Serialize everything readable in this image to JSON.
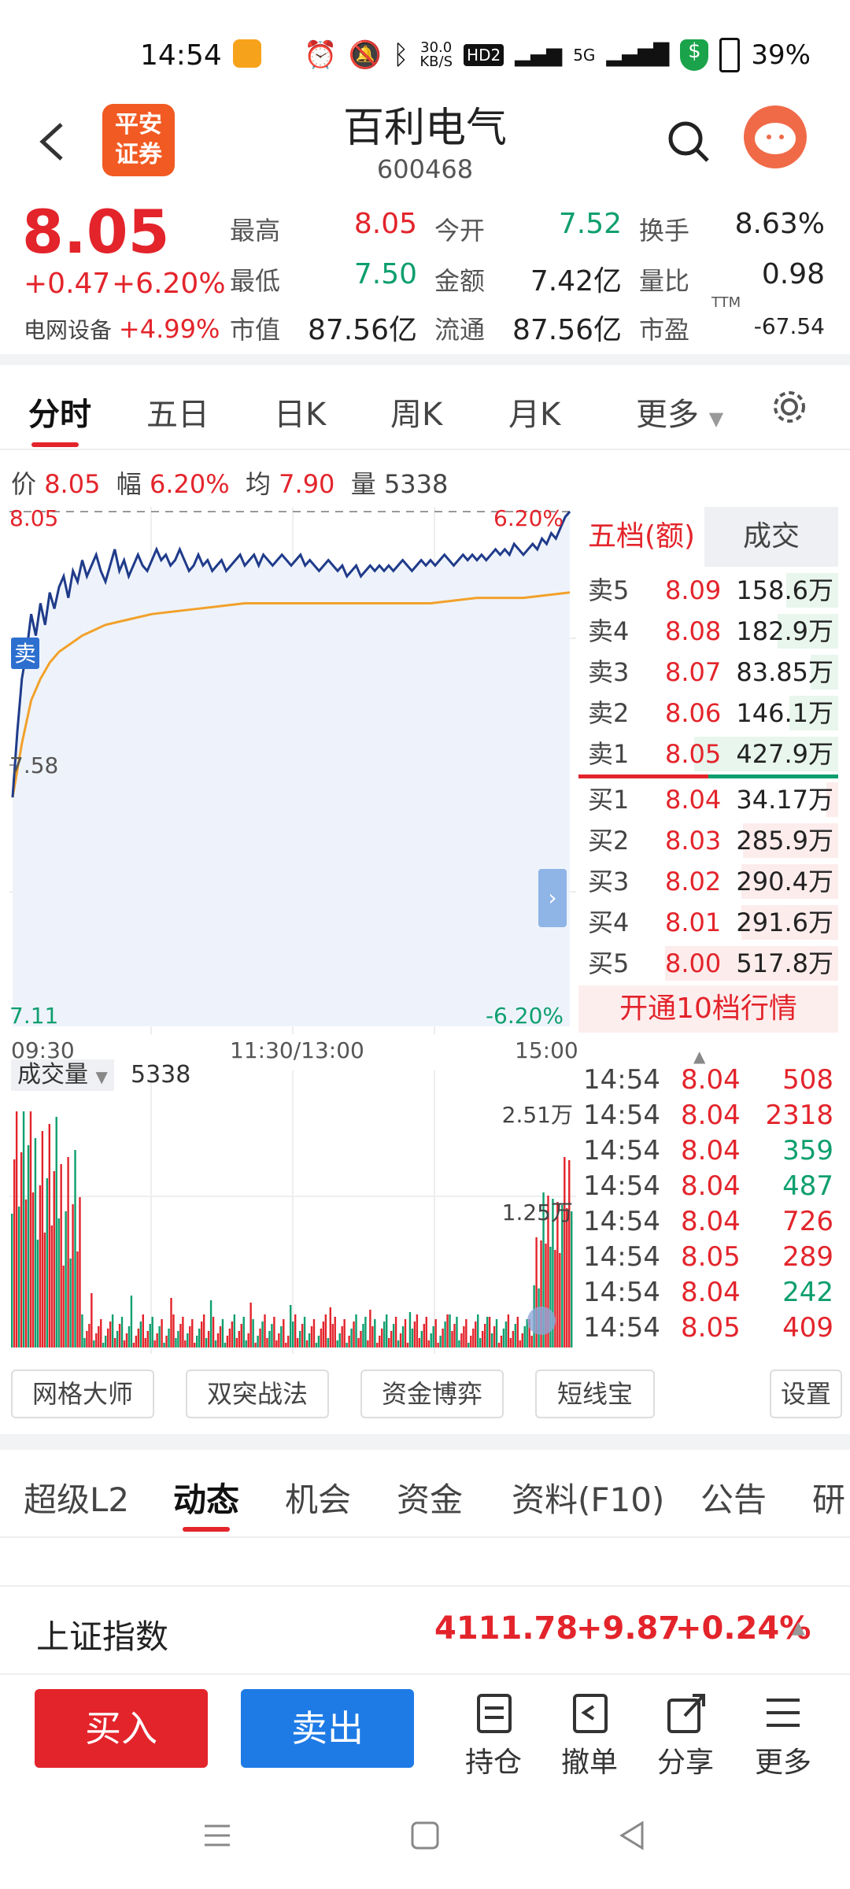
{
  "status_bar": {
    "time": "14:54",
    "net_speed_top": "30.0",
    "net_speed_unit": "KB/S",
    "hd": "HD2",
    "signal": "5G",
    "battery": "39%"
  },
  "header": {
    "stock_name": "百利电气",
    "stock_code": "600468",
    "logo_text_1": "平安",
    "logo_text_2": "证券"
  },
  "quote": {
    "price": "8.05",
    "change": "+0.47",
    "change_pct": "+6.20%",
    "sector_name": "电网设备",
    "sector_pct": "+4.99%",
    "fields": [
      {
        "label": "最高",
        "value": "8.05",
        "color": "#e3242b"
      },
      {
        "label": "今开",
        "value": "7.52",
        "color": "#0e9f6e"
      },
      {
        "label": "换手",
        "value": "8.63%",
        "color": "#222222"
      },
      {
        "label": "最低",
        "value": "7.50",
        "color": "#0e9f6e"
      },
      {
        "label": "金额",
        "value": "7.42亿",
        "color": "#222222"
      },
      {
        "label": "量比",
        "value": "0.98",
        "color": "#222222"
      },
      {
        "label": "市值",
        "value": "87.56亿",
        "color": "#222222"
      },
      {
        "label": "流通",
        "value": "87.56亿",
        "color": "#222222"
      },
      {
        "label": "市盈",
        "value": "-67.54",
        "color": "#222222",
        "sup": "TTM"
      }
    ]
  },
  "chart_tabs": [
    "分时",
    "五日",
    "日K",
    "周K",
    "月K",
    "更多"
  ],
  "chart_info": {
    "price_label": "价",
    "price": "8.05",
    "amp_label": "幅",
    "amp": "6.20%",
    "avg_label": "均",
    "avg": "7.90",
    "vol_label": "量",
    "vol": "5338"
  },
  "chart_data": {
    "type": "line",
    "title": "",
    "x_ticks": [
      "09:30",
      "11:30/13:00",
      "15:00"
    ],
    "y_left": {
      "max": "8.05",
      "mid": "7.58",
      "min": "7.11"
    },
    "y_right": {
      "max": "6.20%",
      "min": "-6.20%"
    },
    "ylim": [
      7.11,
      8.05
    ],
    "marker_label": "卖",
    "series": [
      {
        "name": "价",
        "color": "#1f3b8a",
        "x": [
          0,
          2,
          4,
          6,
          8,
          10,
          12,
          14,
          16,
          18,
          20,
          22,
          24,
          26,
          28,
          30,
          32,
          34,
          36,
          38,
          40,
          42,
          44,
          46,
          48,
          50,
          52,
          54,
          56,
          58,
          60,
          62,
          64,
          66,
          68,
          70,
          72,
          74,
          76,
          78,
          80,
          82,
          84,
          86,
          88,
          90,
          92,
          94,
          96,
          98,
          100,
          102,
          104,
          106,
          108,
          110,
          112,
          114,
          116,
          118,
          120,
          122,
          124,
          126,
          128,
          130,
          132,
          134,
          136,
          138,
          140,
          142,
          144,
          146,
          148,
          150,
          152,
          154,
          156,
          158,
          160,
          162,
          164,
          166,
          168,
          170,
          172,
          174,
          176,
          178,
          180,
          182,
          184,
          186,
          188,
          190,
          192,
          194,
          196,
          198,
          200,
          202,
          204,
          206,
          208,
          210,
          212,
          214,
          216,
          218,
          220,
          222,
          224,
          226,
          228,
          230,
          232,
          234,
          236,
          238,
          240
        ],
        "values": [
          7.52,
          7.64,
          7.74,
          7.79,
          7.86,
          7.82,
          7.88,
          7.84,
          7.9,
          7.87,
          7.91,
          7.93,
          7.89,
          7.94,
          7.92,
          7.96,
          7.93,
          7.95,
          7.97,
          7.94,
          7.92,
          7.95,
          7.98,
          7.94,
          7.96,
          7.93,
          7.95,
          7.97,
          7.95,
          7.94,
          7.96,
          7.98,
          7.96,
          7.97,
          7.95,
          7.96,
          7.98,
          7.96,
          7.94,
          7.95,
          7.97,
          7.95,
          7.96,
          7.94,
          7.95,
          7.96,
          7.94,
          7.95,
          7.96,
          7.97,
          7.95,
          7.96,
          7.97,
          7.95,
          7.97,
          7.96,
          7.95,
          7.96,
          7.97,
          7.96,
          7.95,
          7.96,
          7.97,
          7.95,
          7.96,
          7.95,
          7.94,
          7.95,
          7.96,
          7.95,
          7.94,
          7.95,
          7.93,
          7.94,
          7.95,
          7.93,
          7.94,
          7.95,
          7.94,
          7.95,
          7.94,
          7.95,
          7.94,
          7.95,
          7.96,
          7.95,
          7.94,
          7.95,
          7.96,
          7.95,
          7.96,
          7.95,
          7.96,
          7.97,
          7.96,
          7.95,
          7.96,
          7.97,
          7.96,
          7.97,
          7.96,
          7.97,
          7.96,
          7.97,
          7.98,
          7.97,
          7.98,
          7.97,
          7.99,
          7.98,
          7.97,
          7.98,
          7.99,
          7.98,
          8.0,
          7.99,
          8.01,
          8.0,
          8.02,
          8.04,
          8.05
        ]
      },
      {
        "name": "均",
        "color": "#f2a12b",
        "x": [
          0,
          4,
          8,
          12,
          16,
          20,
          30,
          40,
          50,
          60,
          80,
          100,
          120,
          140,
          160,
          180,
          200,
          220,
          240
        ],
        "values": [
          7.52,
          7.62,
          7.7,
          7.74,
          7.77,
          7.79,
          7.82,
          7.84,
          7.85,
          7.86,
          7.87,
          7.88,
          7.88,
          7.88,
          7.88,
          7.88,
          7.89,
          7.89,
          7.9
        ]
      }
    ]
  },
  "order_book": {
    "tab_active": "五档(额)",
    "tab_other": "成交",
    "asks": [
      {
        "label": "卖5",
        "price": "8.09",
        "vol": "158.6万",
        "level": 0.3
      },
      {
        "label": "卖4",
        "price": "8.08",
        "vol": "182.9万",
        "level": 0.35
      },
      {
        "label": "卖3",
        "price": "8.07",
        "vol": "83.85万",
        "level": 0.16
      },
      {
        "label": "卖2",
        "price": "8.06",
        "vol": "146.1万",
        "level": 0.28
      },
      {
        "label": "卖1",
        "price": "8.05",
        "vol": "427.9万",
        "level": 0.83
      }
    ],
    "bids": [
      {
        "label": "买1",
        "price": "8.04",
        "vol": "34.17万",
        "level": 0.07
      },
      {
        "label": "买2",
        "price": "8.03",
        "vol": "285.9万",
        "level": 0.55
      },
      {
        "label": "买3",
        "price": "8.02",
        "vol": "290.4万",
        "level": 0.56
      },
      {
        "label": "买4",
        "price": "8.01",
        "vol": "291.6万",
        "level": 0.56
      },
      {
        "label": "买5",
        "price": "8.00",
        "vol": "517.8万",
        "level": 1.0
      }
    ],
    "open_more": "开通10档行情"
  },
  "volume": {
    "label": "成交量",
    "value": "5338",
    "ytick_high": "2.51万",
    "ytick_mid": "1.25万"
  },
  "ticks": [
    {
      "time": "14:54",
      "price": "8.04",
      "vol": "508",
      "color": "#e3242b"
    },
    {
      "time": "14:54",
      "price": "8.04",
      "vol": "2318",
      "color": "#e3242b"
    },
    {
      "time": "14:54",
      "price": "8.04",
      "vol": "359",
      "color": "#0e9f6e"
    },
    {
      "time": "14:54",
      "price": "8.04",
      "vol": "487",
      "color": "#0e9f6e"
    },
    {
      "time": "14:54",
      "price": "8.04",
      "vol": "726",
      "color": "#e3242b"
    },
    {
      "time": "14:54",
      "price": "8.05",
      "vol": "289",
      "color": "#e3242b"
    },
    {
      "time": "14:54",
      "price": "8.04",
      "vol": "242",
      "color": "#0e9f6e"
    },
    {
      "time": "14:54",
      "price": "8.05",
      "vol": "409",
      "color": "#e3242b"
    }
  ],
  "tools": [
    "网格大师",
    "双突战法",
    "资金博弈",
    "短线宝",
    "设置"
  ],
  "info_tabs": [
    "超级L2",
    "动态",
    "机会",
    "资金",
    "资料(F10)",
    "公告",
    "研"
  ],
  "index": {
    "name": "上证指数",
    "value": "4111.78",
    "change": "+9.87",
    "pct": "+0.24%"
  },
  "actions": {
    "buy": "买入",
    "sell": "卖出",
    "hold": "持仓",
    "cancel": "撤单",
    "share": "分享",
    "more": "更多"
  }
}
